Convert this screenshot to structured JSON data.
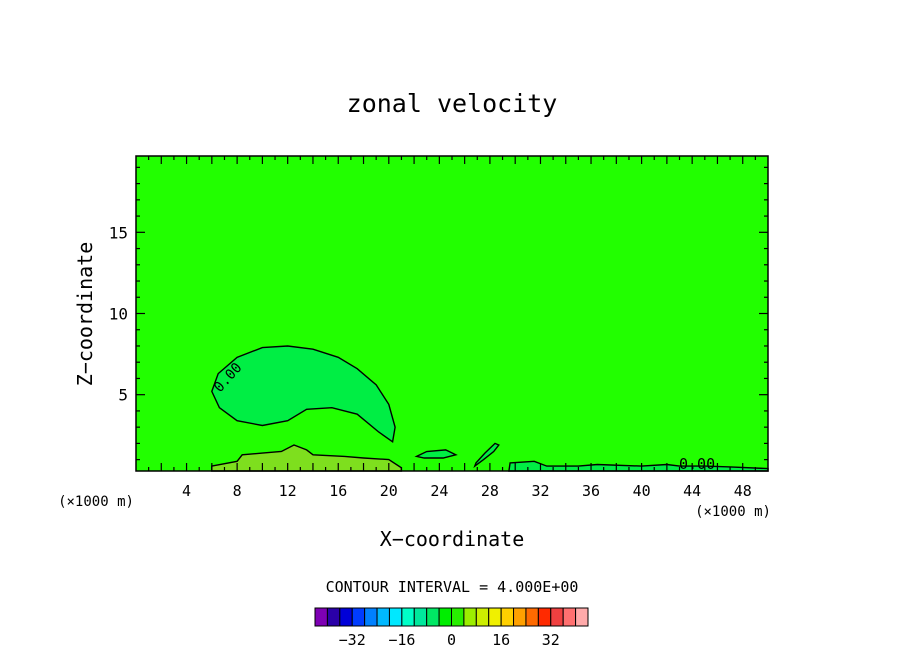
{
  "chart_data": {
    "type": "heatmap",
    "title": "zonal velocity",
    "xlabel": "X−coordinate",
    "ylabel": "Z−coordinate",
    "x_units_left": "(×1000 m)",
    "x_units_right": "(×1000 m)",
    "xlim": [
      0,
      50
    ],
    "ylim": [
      0.3,
      19.7
    ],
    "x_ticks": [
      4,
      8,
      12,
      16,
      20,
      24,
      28,
      32,
      36,
      40,
      44,
      48
    ],
    "y_ticks": [
      5,
      10,
      15
    ],
    "contour_interval_label": "CONTOUR INTERVAL = 4.000E+00",
    "contour_level_labels": [
      "0.00",
      "0.00"
    ],
    "background_value": 0,
    "regions": [
      {
        "name": "negative-cell",
        "value": -2,
        "color": "#00ee44",
        "outline": [
          [
            6.0,
            5.2
          ],
          [
            6.5,
            6.3
          ],
          [
            8,
            7.3
          ],
          [
            10,
            7.9
          ],
          [
            12,
            8.0
          ],
          [
            14,
            7.8
          ],
          [
            16,
            7.3
          ],
          [
            17.5,
            6.6
          ],
          [
            19,
            5.6
          ],
          [
            20,
            4.4
          ],
          [
            20.5,
            3.0
          ],
          [
            20.3,
            2.1
          ],
          [
            19.2,
            2.7
          ],
          [
            17.5,
            3.8
          ],
          [
            15.5,
            4.2
          ],
          [
            13.5,
            4.1
          ],
          [
            12,
            3.4
          ],
          [
            10,
            3.1
          ],
          [
            8,
            3.4
          ],
          [
            6.6,
            4.2
          ],
          [
            6.0,
            5.2
          ]
        ]
      },
      {
        "name": "positive-surface-band",
        "value": 2,
        "color": "#7edf1e",
        "outline": [
          [
            6,
            0.3
          ],
          [
            6,
            0.6
          ],
          [
            8,
            0.9
          ],
          [
            8.4,
            1.3
          ],
          [
            10,
            1.4
          ],
          [
            11.5,
            1.5
          ],
          [
            12.5,
            1.9
          ],
          [
            13.5,
            1.6
          ],
          [
            14,
            1.3
          ],
          [
            16.5,
            1.2
          ],
          [
            18,
            1.1
          ],
          [
            20,
            1.0
          ],
          [
            21,
            0.5
          ],
          [
            21,
            0.3
          ]
        ]
      },
      {
        "name": "negative-surface-band",
        "value": -2,
        "color": "#00ee44",
        "outline": [
          [
            29.5,
            0.3
          ],
          [
            29.6,
            0.8
          ],
          [
            31.5,
            0.9
          ],
          [
            32.5,
            0.6
          ],
          [
            35,
            0.6
          ],
          [
            36.5,
            0.7
          ],
          [
            40,
            0.6
          ],
          [
            42,
            0.7
          ],
          [
            43,
            0.6
          ],
          [
            45,
            0.6
          ],
          [
            47,
            0.55
          ],
          [
            50,
            0.45
          ],
          [
            50,
            0.3
          ]
        ]
      },
      {
        "name": "negative-patch-24",
        "value": -2,
        "color": "#00ee44",
        "outline": [
          [
            22.2,
            1.2
          ],
          [
            23,
            1.5
          ],
          [
            24.5,
            1.6
          ],
          [
            25.3,
            1.3
          ],
          [
            24.3,
            1.1
          ],
          [
            22.8,
            1.1
          ],
          [
            22.2,
            1.2
          ]
        ]
      },
      {
        "name": "negative-patch-28",
        "value": -2,
        "color": "#00ee44",
        "outline": [
          [
            26.8,
            0.6
          ],
          [
            27.5,
            1.0
          ],
          [
            28.3,
            1.5
          ],
          [
            28.7,
            1.9
          ],
          [
            28.4,
            2.0
          ],
          [
            27.6,
            1.4
          ],
          [
            26.9,
            0.8
          ],
          [
            26.8,
            0.6
          ]
        ]
      }
    ],
    "colorbar": {
      "colors": [
        "#7e00b4",
        "#2a00a8",
        "#0000d8",
        "#003cff",
        "#0080ff",
        "#00b8ff",
        "#00e8ff",
        "#00ffc8",
        "#00e89c",
        "#00e864",
        "#00ee00",
        "#28ee00",
        "#9cee00",
        "#ccee00",
        "#f0f000",
        "#ffd000",
        "#ffa000",
        "#ff6a00",
        "#ff2a00",
        "#f04040",
        "#ff7070",
        "#ffaaaa"
      ],
      "tick_labels": [
        "−32",
        "−16",
        "0",
        "16",
        "32"
      ],
      "tick_values": [
        -32,
        -16,
        0,
        16,
        32
      ]
    },
    "colors": {
      "field": "#22ff00",
      "line": "#000000"
    }
  }
}
